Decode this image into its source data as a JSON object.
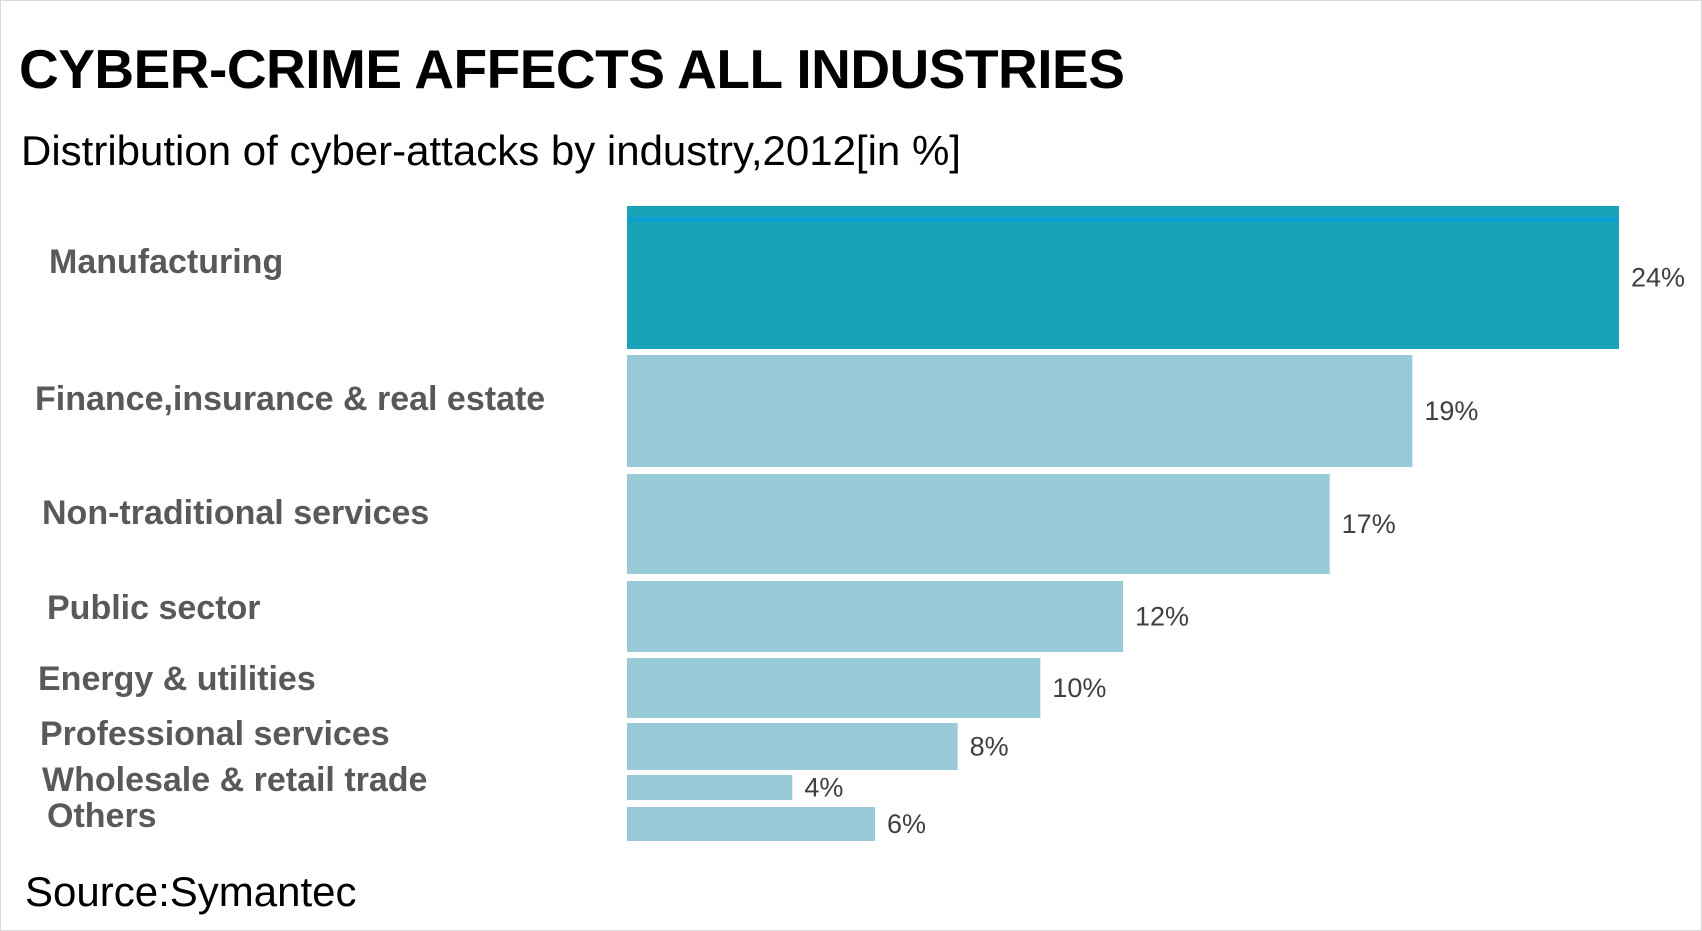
{
  "title": "CYBER-CRIME AFFECTS ALL INDUSTRIES",
  "subtitle": "Distribution of cyber-attacks by industry,2012[in %]",
  "source": "Source:Symantec",
  "colors": {
    "highlight": "#1AA3B8",
    "highlight_top": "#0B9FD2",
    "bar": "#98CAD7"
  },
  "chart_data": {
    "type": "bar",
    "orientation": "horizontal",
    "title": "CYBER-CRIME AFFECTS ALL INDUSTRIES",
    "subtitle": "Distribution of cyber-attacks by industry,2012[in %]",
    "categories": [
      "Manufacturing",
      "Finance,insurance & real estate",
      "Non-traditional services",
      "Public sector",
      "Energy & utilities",
      "Professional services",
      "Wholesale & retail trade",
      "Others"
    ],
    "values": [
      24,
      19,
      17,
      12,
      10,
      8,
      4,
      6
    ],
    "value_labels": [
      "24%",
      "19%",
      "17%",
      "12%",
      "10%",
      "8%",
      "4%",
      "6%"
    ],
    "highlighted_category": "Manufacturing",
    "xlim": [
      0,
      24
    ],
    "grid": false,
    "legend": "none"
  }
}
